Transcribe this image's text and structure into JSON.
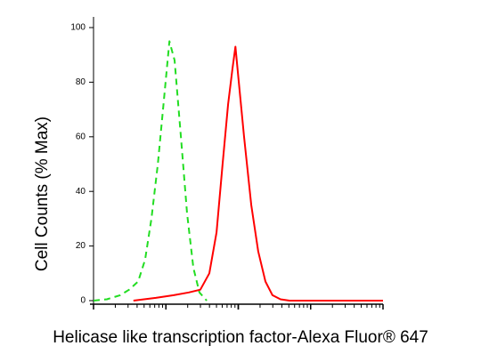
{
  "chart_data": {
    "type": "line",
    "xlabel": "Helicase like transcription factor-Alexa Fluor® 647",
    "ylabel": "Cell Counts (% Max)",
    "xlim": [
      0,
      100
    ],
    "ylim": [
      0,
      100
    ],
    "yticks": [
      0,
      20,
      40,
      60,
      80,
      100
    ],
    "series": [
      {
        "color": "#22dd22",
        "dash": true,
        "x": [
          0,
          4.6,
          9.2,
          12.3,
          15.4,
          17.8,
          20,
          22.2,
          24,
          26.2,
          28,
          30.2,
          32.3,
          34.5,
          36.6,
          39.1
        ],
        "values": [
          0,
          0.5,
          2,
          4,
          7,
          15,
          30,
          50,
          70,
          95,
          88,
          60,
          32,
          12,
          3,
          0
        ]
      },
      {
        "color": "#ff0000",
        "dash": false,
        "x": [
          13.8,
          21.5,
          27.7,
          32.9,
          36.9,
          40,
          42.5,
          44.6,
          46.5,
          48,
          49,
          50.2,
          52,
          54.5,
          56.9,
          59.4,
          61.8,
          64.6,
          67.7,
          100
        ],
        "values": [
          0,
          1,
          2,
          3,
          4,
          10,
          25,
          50,
          72,
          85,
          93,
          80,
          60,
          35,
          18,
          7,
          2,
          0.5,
          0,
          0
        ]
      }
    ]
  }
}
